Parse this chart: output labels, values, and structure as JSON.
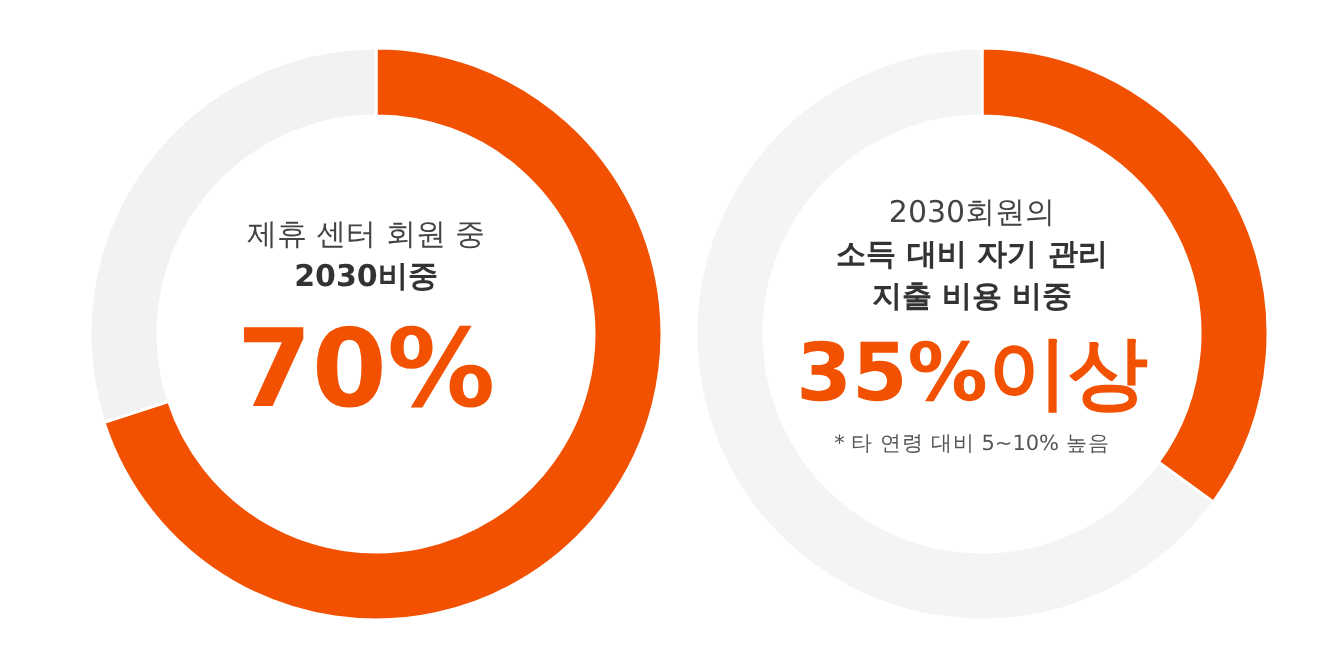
{
  "chart_data": [
    {
      "type": "donut",
      "title": "제휴 센터 회원 중",
      "subtitle": "2030비중",
      "categories": [
        null,
        null
      ],
      "values": [
        70,
        30
      ],
      "colors": [
        "#f15100",
        "#f2f2f2"
      ],
      "annotations": [
        "70%"
      ]
    },
    {
      "type": "donut",
      "title": "2030회원의",
      "subtitle": "소득 대비 자기 관리\n지출 비용 비중",
      "categories": [
        null,
        null
      ],
      "values": [
        35,
        65
      ],
      "colors": [
        "#f15100",
        "#f4f4f4"
      ],
      "annotations": [
        "35%이상",
        "* 타 연령 대비 5~10% 높음"
      ]
    }
  ]
}
